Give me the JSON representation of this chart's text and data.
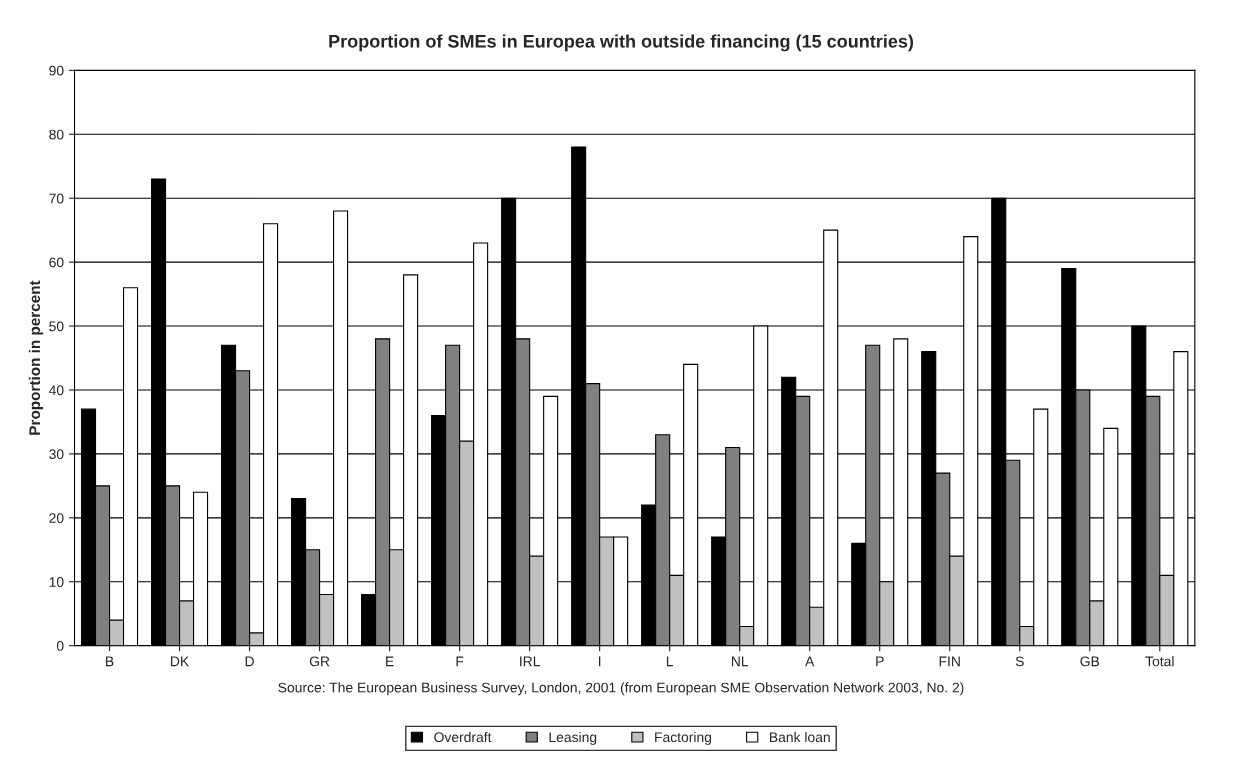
{
  "chart_data": {
    "type": "bar",
    "title": "Proportion of SMEs in Europea with outside financing (15 countries)",
    "ylabel": "Proportion in percent",
    "categories": [
      "B",
      "DK",
      "D",
      "GR",
      "E",
      "F",
      "IRL",
      "I",
      "L",
      "NL",
      "A",
      "P",
      "FIN",
      "S",
      "GB",
      "Total"
    ],
    "series": [
      {
        "name": "Overdraft",
        "color": "#000000",
        "values": [
          37,
          73,
          47,
          23,
          8,
          36,
          70,
          78,
          22,
          17,
          42,
          16,
          46,
          70,
          59,
          50
        ]
      },
      {
        "name": "Leasing",
        "color": "#808080",
        "values": [
          25,
          25,
          43,
          15,
          48,
          47,
          48,
          41,
          33,
          31,
          39,
          47,
          27,
          29,
          40,
          39
        ]
      },
      {
        "name": "Factoring",
        "color": "#c0c0c0",
        "values": [
          4,
          7,
          2,
          8,
          15,
          32,
          14,
          17,
          11,
          3,
          6,
          10,
          14,
          3,
          7,
          11
        ]
      },
      {
        "name": "Bank loan",
        "color": "#ffffff",
        "values": [
          56,
          24,
          66,
          68,
          58,
          63,
          39,
          17,
          44,
          50,
          65,
          48,
          64,
          37,
          34,
          46
        ]
      }
    ],
    "ylim": [
      0,
      90
    ],
    "yticks": [
      0,
      10,
      20,
      30,
      40,
      50,
      60,
      70,
      80,
      90
    ],
    "grid": "y",
    "legend": "bottom",
    "annotations": [
      "Source: The European Business Survey, London, 2001 (from European SME Observation Network 2003, No. 2)"
    ]
  }
}
